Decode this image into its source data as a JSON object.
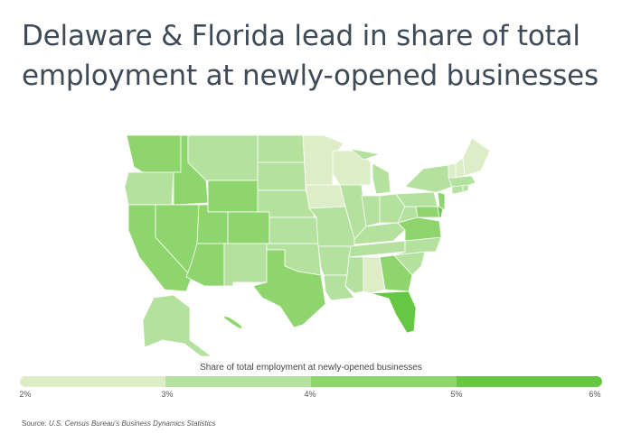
{
  "title": "Delaware & Florida lead in share of total employment at newly-opened businesses",
  "legend": {
    "title": "Share of total employment at newly-opened businesses",
    "ticks": [
      "2%",
      "3%",
      "4%",
      "5%",
      "6%"
    ],
    "colors": [
      "#dcedc8",
      "#b4e19d",
      "#8fd56e",
      "#66c744"
    ]
  },
  "source": {
    "label": "Source:",
    "text": "U.S. Census Bureau's Business Dynamics Statistics"
  },
  "map_data": {
    "type": "choropleth",
    "region": "United States",
    "bins": [
      "2%-3%",
      "3%-4%",
      "4%-5%",
      "5%-6%"
    ],
    "states_by_bin": {
      "2%-3%": [
        "ME",
        "VT",
        "MN",
        "WI",
        "IA",
        "AL",
        "NH"
      ],
      "3%-4%": [
        "OR",
        "MT",
        "ND",
        "SD",
        "NE",
        "KS",
        "NM",
        "MO",
        "AR",
        "MI",
        "IN",
        "OH",
        "PA",
        "NY",
        "KY",
        "TN",
        "MS",
        "WV",
        "NC",
        "SC",
        "AK",
        "MA",
        "RI",
        "CT",
        "LA",
        "OK",
        "IL"
      ],
      "4%-5%": [
        "WA",
        "ID",
        "CA",
        "NV",
        "UT",
        "WY",
        "CO",
        "AZ",
        "TX",
        "VA",
        "GA",
        "MD",
        "NJ",
        "HI"
      ],
      "5%-6%": [
        "DE",
        "FL"
      ]
    }
  }
}
